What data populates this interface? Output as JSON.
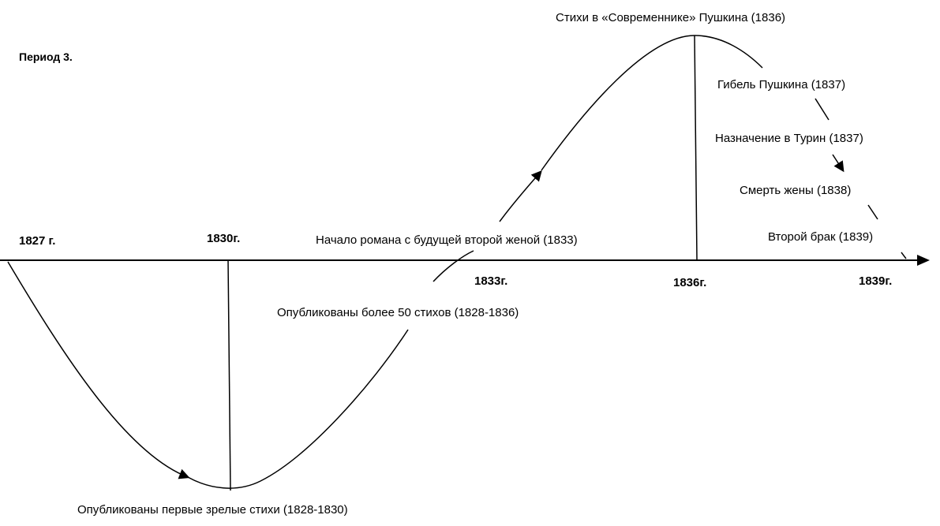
{
  "diagram": {
    "period_title": "Период 3.",
    "axis": {
      "years": [
        {
          "label": "1827 г."
        },
        {
          "label": "1830г."
        },
        {
          "label": "1833г."
        },
        {
          "label": "1836г."
        },
        {
          "label": "1839г."
        }
      ]
    },
    "events": [
      {
        "label": "Стихи в «Современнике» Пушкина (1836)"
      },
      {
        "label": "Гибель Пушкина (1837)"
      },
      {
        "label": "Назначение в Турин (1837)"
      },
      {
        "label": "Смерть жены (1838)"
      },
      {
        "label": "Второй брак (1839)"
      },
      {
        "label": "Начало романа с будущей второй женой (1833)"
      },
      {
        "label": "Опубликованы более 50 стихов (1828-1836)"
      },
      {
        "label": "Опубликованы первые зрелые стихи (1828-1830)"
      }
    ],
    "stroke_color": "#000000"
  }
}
